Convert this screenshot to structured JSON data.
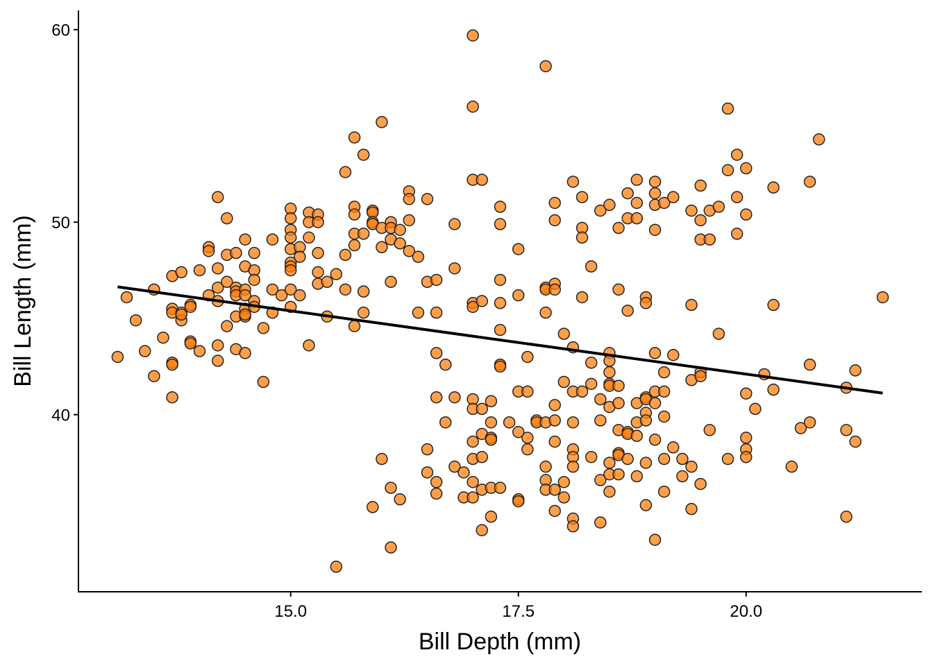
{
  "chart_data": {
    "type": "scatter",
    "title": "",
    "xlabel": "Bill Depth (mm)",
    "ylabel": "Bill Length (mm)",
    "xlim": [
      12.67,
      21.93
    ],
    "ylim": [
      30.8,
      61.0
    ],
    "xticks": [
      {
        "value": 15.0,
        "label": "15.0"
      },
      {
        "value": 17.5,
        "label": "17.5"
      },
      {
        "value": 20.0,
        "label": "20.0"
      }
    ],
    "yticks": [
      {
        "value": 40,
        "label": "40"
      },
      {
        "value": 50,
        "label": "50"
      },
      {
        "value": 60,
        "label": "60"
      }
    ],
    "grid": false,
    "point_color": "#ff7f0e",
    "point_stroke": "#222222",
    "point_opacity": 0.75,
    "trend_line": {
      "color": "#000000",
      "points": [
        [
          13.1,
          46.64
        ],
        [
          21.5,
          41.12
        ]
      ]
    },
    "points": [
      [
        13.1,
        43.0
      ],
      [
        13.2,
        46.1
      ],
      [
        13.3,
        44.9
      ],
      [
        13.4,
        43.3
      ],
      [
        13.5,
        42.0
      ],
      [
        13.5,
        46.5
      ],
      [
        13.6,
        44.0
      ],
      [
        13.7,
        47.2
      ],
      [
        13.7,
        45.5
      ],
      [
        13.7,
        45.3
      ],
      [
        13.7,
        42.7
      ],
      [
        13.7,
        42.6
      ],
      [
        13.7,
        40.9
      ],
      [
        13.8,
        47.4
      ],
      [
        13.8,
        45.3
      ],
      [
        13.8,
        44.9
      ],
      [
        13.8,
        45.2
      ],
      [
        13.9,
        45.7
      ],
      [
        13.9,
        45.6
      ],
      [
        13.9,
        43.8
      ],
      [
        13.9,
        43.7
      ],
      [
        14.0,
        47.5
      ],
      [
        14.0,
        43.3
      ],
      [
        14.1,
        48.7
      ],
      [
        14.1,
        48.5
      ],
      [
        14.1,
        46.2
      ],
      [
        14.2,
        51.3
      ],
      [
        14.2,
        47.6
      ],
      [
        14.2,
        46.6
      ],
      [
        14.2,
        45.9
      ],
      [
        14.2,
        43.6
      ],
      [
        14.2,
        42.8
      ],
      [
        14.3,
        50.2
      ],
      [
        14.3,
        48.3
      ],
      [
        14.3,
        46.9
      ],
      [
        14.3,
        44.6
      ],
      [
        14.4,
        48.4
      ],
      [
        14.4,
        46.6
      ],
      [
        14.4,
        46.4
      ],
      [
        14.4,
        46.2
      ],
      [
        14.4,
        45.1
      ],
      [
        14.4,
        43.4
      ],
      [
        14.5,
        49.1
      ],
      [
        14.5,
        47.7
      ],
      [
        14.5,
        46.5
      ],
      [
        14.5,
        46.2
      ],
      [
        14.5,
        45.5
      ],
      [
        14.5,
        45.1
      ],
      [
        14.5,
        45.2
      ],
      [
        14.5,
        43.2
      ],
      [
        14.6,
        48.4
      ],
      [
        14.6,
        47.5
      ],
      [
        14.6,
        47.0
      ],
      [
        14.6,
        45.9
      ],
      [
        14.6,
        45.6
      ],
      [
        14.7,
        44.5
      ],
      [
        14.7,
        41.7
      ],
      [
        14.8,
        49.1
      ],
      [
        14.8,
        46.5
      ],
      [
        14.8,
        45.3
      ],
      [
        14.9,
        46.2
      ],
      [
        15.0,
        50.7
      ],
      [
        15.0,
        50.2
      ],
      [
        15.0,
        49.6
      ],
      [
        15.0,
        49.2
      ],
      [
        15.0,
        48.6
      ],
      [
        15.0,
        47.9
      ],
      [
        15.0,
        47.7
      ],
      [
        15.0,
        47.5
      ],
      [
        15.0,
        46.5
      ],
      [
        15.0,
        45.6
      ],
      [
        15.1,
        48.7
      ],
      [
        15.1,
        48.2
      ],
      [
        15.1,
        46.2
      ],
      [
        15.2,
        50.5
      ],
      [
        15.2,
        50.0
      ],
      [
        15.2,
        49.2
      ],
      [
        15.2,
        43.6
      ],
      [
        15.3,
        50.4
      ],
      [
        15.3,
        50.0
      ],
      [
        15.3,
        48.4
      ],
      [
        15.3,
        47.4
      ],
      [
        15.3,
        46.8
      ],
      [
        15.4,
        46.9
      ],
      [
        15.4,
        45.1
      ],
      [
        15.5,
        47.3
      ],
      [
        15.5,
        32.1
      ],
      [
        15.6,
        52.6
      ],
      [
        15.6,
        48.3
      ],
      [
        15.6,
        46.5
      ],
      [
        15.7,
        54.4
      ],
      [
        15.7,
        50.8
      ],
      [
        15.7,
        50.4
      ],
      [
        15.7,
        49.4
      ],
      [
        15.7,
        48.8
      ],
      [
        15.7,
        44.6
      ],
      [
        15.8,
        53.5
      ],
      [
        15.8,
        49.4
      ],
      [
        15.8,
        46.4
      ],
      [
        15.8,
        45.3
      ],
      [
        15.9,
        50.6
      ],
      [
        15.9,
        50.5
      ],
      [
        15.9,
        50.0
      ],
      [
        15.9,
        49.9
      ],
      [
        15.9,
        35.2
      ],
      [
        16.0,
        55.2
      ],
      [
        16.0,
        49.7
      ],
      [
        16.0,
        48.7
      ],
      [
        16.0,
        37.7
      ],
      [
        16.1,
        50.0
      ],
      [
        16.1,
        49.7
      ],
      [
        16.1,
        49.1
      ],
      [
        16.1,
        46.9
      ],
      [
        16.1,
        36.2
      ],
      [
        16.1,
        33.1
      ],
      [
        16.2,
        49.6
      ],
      [
        16.2,
        48.9
      ],
      [
        16.2,
        35.6
      ],
      [
        16.3,
        51.6
      ],
      [
        16.3,
        51.2
      ],
      [
        16.3,
        50.1
      ],
      [
        16.3,
        48.5
      ],
      [
        16.4,
        48.2
      ],
      [
        16.4,
        45.3
      ],
      [
        16.5,
        51.2
      ],
      [
        16.5,
        46.9
      ],
      [
        16.5,
        38.2
      ],
      [
        16.5,
        37.0
      ],
      [
        16.6,
        47.0
      ],
      [
        16.6,
        45.3
      ],
      [
        16.6,
        43.2
      ],
      [
        16.6,
        40.9
      ],
      [
        16.6,
        36.5
      ],
      [
        16.6,
        35.9
      ],
      [
        16.7,
        42.6
      ],
      [
        16.7,
        39.6
      ],
      [
        16.8,
        49.9
      ],
      [
        16.8,
        47.6
      ],
      [
        16.8,
        40.9
      ],
      [
        16.8,
        37.3
      ],
      [
        16.9,
        37.0
      ],
      [
        16.9,
        35.7
      ],
      [
        17.0,
        59.7
      ],
      [
        17.0,
        56.0
      ],
      [
        17.0,
        52.2
      ],
      [
        17.0,
        45.8
      ],
      [
        17.0,
        45.6
      ],
      [
        17.0,
        40.8
      ],
      [
        17.0,
        40.3
      ],
      [
        17.0,
        38.6
      ],
      [
        17.0,
        37.7
      ],
      [
        17.0,
        36.5
      ],
      [
        17.0,
        35.7
      ],
      [
        17.1,
        52.2
      ],
      [
        17.1,
        45.9
      ],
      [
        17.1,
        40.3
      ],
      [
        17.1,
        39.0
      ],
      [
        17.1,
        37.8
      ],
      [
        17.1,
        36.1
      ],
      [
        17.1,
        34.0
      ],
      [
        17.2,
        40.7
      ],
      [
        17.2,
        39.6
      ],
      [
        17.2,
        38.8
      ],
      [
        17.2,
        38.7
      ],
      [
        17.2,
        36.2
      ],
      [
        17.2,
        34.7
      ],
      [
        17.3,
        50.8
      ],
      [
        17.3,
        49.9
      ],
      [
        17.3,
        47.0
      ],
      [
        17.3,
        45.8
      ],
      [
        17.3,
        44.4
      ],
      [
        17.3,
        42.6
      ],
      [
        17.3,
        42.5
      ],
      [
        17.3,
        36.2
      ],
      [
        17.4,
        39.6
      ],
      [
        17.5,
        48.6
      ],
      [
        17.5,
        46.2
      ],
      [
        17.5,
        41.2
      ],
      [
        17.5,
        39.1
      ],
      [
        17.5,
        35.6
      ],
      [
        17.5,
        35.5
      ],
      [
        17.6,
        43.0
      ],
      [
        17.6,
        41.2
      ],
      [
        17.6,
        38.8
      ],
      [
        17.6,
        38.2
      ],
      [
        17.7,
        39.7
      ],
      [
        17.7,
        39.6
      ],
      [
        17.8,
        58.1
      ],
      [
        17.8,
        46.6
      ],
      [
        17.8,
        46.5
      ],
      [
        17.8,
        45.3
      ],
      [
        17.8,
        39.6
      ],
      [
        17.8,
        37.3
      ],
      [
        17.8,
        36.6
      ],
      [
        17.8,
        36.1
      ],
      [
        17.9,
        51.0
      ],
      [
        17.9,
        50.1
      ],
      [
        17.9,
        46.8
      ],
      [
        17.9,
        46.5
      ],
      [
        17.9,
        40.5
      ],
      [
        17.9,
        39.7
      ],
      [
        17.9,
        38.6
      ],
      [
        17.9,
        36.1
      ],
      [
        17.9,
        35.0
      ],
      [
        18.0,
        44.2
      ],
      [
        18.0,
        41.7
      ],
      [
        18.0,
        36.5
      ],
      [
        18.0,
        35.7
      ],
      [
        18.1,
        52.1
      ],
      [
        18.1,
        43.5
      ],
      [
        18.1,
        41.2
      ],
      [
        18.1,
        39.6
      ],
      [
        18.1,
        38.2
      ],
      [
        18.1,
        37.8
      ],
      [
        18.1,
        37.3
      ],
      [
        18.1,
        34.6
      ],
      [
        18.1,
        34.2
      ],
      [
        18.2,
        51.3
      ],
      [
        18.2,
        49.7
      ],
      [
        18.2,
        49.2
      ],
      [
        18.2,
        46.1
      ],
      [
        18.2,
        41.2
      ],
      [
        18.3,
        47.7
      ],
      [
        18.3,
        42.7
      ],
      [
        18.3,
        41.6
      ],
      [
        18.3,
        37.8
      ],
      [
        18.4,
        50.6
      ],
      [
        18.4,
        40.8
      ],
      [
        18.4,
        39.7
      ],
      [
        18.4,
        36.6
      ],
      [
        18.4,
        34.4
      ],
      [
        18.5,
        50.9
      ],
      [
        18.5,
        43.2
      ],
      [
        18.5,
        42.8
      ],
      [
        18.5,
        42.2
      ],
      [
        18.5,
        41.6
      ],
      [
        18.5,
        41.5
      ],
      [
        18.5,
        40.4
      ],
      [
        18.5,
        37.5
      ],
      [
        18.5,
        36.9
      ],
      [
        18.5,
        36.0
      ],
      [
        18.6,
        49.7
      ],
      [
        18.6,
        46.5
      ],
      [
        18.6,
        41.5
      ],
      [
        18.6,
        40.6
      ],
      [
        18.6,
        39.2
      ],
      [
        18.6,
        38.0
      ],
      [
        18.6,
        37.9
      ],
      [
        18.6,
        36.9
      ],
      [
        18.7,
        51.5
      ],
      [
        18.7,
        50.2
      ],
      [
        18.7,
        45.4
      ],
      [
        18.7,
        39.1
      ],
      [
        18.7,
        39.0
      ],
      [
        18.7,
        37.7
      ],
      [
        18.8,
        52.2
      ],
      [
        18.8,
        51.0
      ],
      [
        18.8,
        50.2
      ],
      [
        18.8,
        40.6
      ],
      [
        18.8,
        39.6
      ],
      [
        18.8,
        38.9
      ],
      [
        18.8,
        36.8
      ],
      [
        18.9,
        46.1
      ],
      [
        18.9,
        45.8
      ],
      [
        18.9,
        40.9
      ],
      [
        18.9,
        40.8
      ],
      [
        18.9,
        40.1
      ],
      [
        18.9,
        39.7
      ],
      [
        18.9,
        37.5
      ],
      [
        18.9,
        35.3
      ],
      [
        19.0,
        52.1
      ],
      [
        19.0,
        51.5
      ],
      [
        19.0,
        50.9
      ],
      [
        19.0,
        49.6
      ],
      [
        19.0,
        43.2
      ],
      [
        19.0,
        41.2
      ],
      [
        19.0,
        40.6
      ],
      [
        19.0,
        38.7
      ],
      [
        19.0,
        33.5
      ],
      [
        19.1,
        51.0
      ],
      [
        19.1,
        42.2
      ],
      [
        19.1,
        41.2
      ],
      [
        19.1,
        39.9
      ],
      [
        19.1,
        37.7
      ],
      [
        19.1,
        36.0
      ],
      [
        19.2,
        51.3
      ],
      [
        19.2,
        43.1
      ],
      [
        19.2,
        38.3
      ],
      [
        19.3,
        37.7
      ],
      [
        19.3,
        36.8
      ],
      [
        19.4,
        50.6
      ],
      [
        19.4,
        45.7
      ],
      [
        19.4,
        41.8
      ],
      [
        19.4,
        37.3
      ],
      [
        19.4,
        35.1
      ],
      [
        19.5,
        51.9
      ],
      [
        19.5,
        50.1
      ],
      [
        19.5,
        49.1
      ],
      [
        19.5,
        42.2
      ],
      [
        19.5,
        42.0
      ],
      [
        19.5,
        36.4
      ],
      [
        19.6,
        50.6
      ],
      [
        19.6,
        49.1
      ],
      [
        19.6,
        39.2
      ],
      [
        19.7,
        50.8
      ],
      [
        19.7,
        44.2
      ],
      [
        19.8,
        55.9
      ],
      [
        19.8,
        52.7
      ],
      [
        19.8,
        37.7
      ],
      [
        19.9,
        53.5
      ],
      [
        19.9,
        51.3
      ],
      [
        19.9,
        49.4
      ],
      [
        20.0,
        52.8
      ],
      [
        20.0,
        50.4
      ],
      [
        20.0,
        41.1
      ],
      [
        20.0,
        38.8
      ],
      [
        20.0,
        38.2
      ],
      [
        20.0,
        37.8
      ],
      [
        20.1,
        40.3
      ],
      [
        20.2,
        42.1
      ],
      [
        20.3,
        51.8
      ],
      [
        20.3,
        45.7
      ],
      [
        20.3,
        41.3
      ],
      [
        20.5,
        37.3
      ],
      [
        20.6,
        39.3
      ],
      [
        20.7,
        52.1
      ],
      [
        20.7,
        42.6
      ],
      [
        20.7,
        39.6
      ],
      [
        20.8,
        54.3
      ],
      [
        21.1,
        41.4
      ],
      [
        21.1,
        39.2
      ],
      [
        21.1,
        34.7
      ],
      [
        21.2,
        42.3
      ],
      [
        21.2,
        38.6
      ],
      [
        21.5,
        46.1
      ]
    ]
  }
}
